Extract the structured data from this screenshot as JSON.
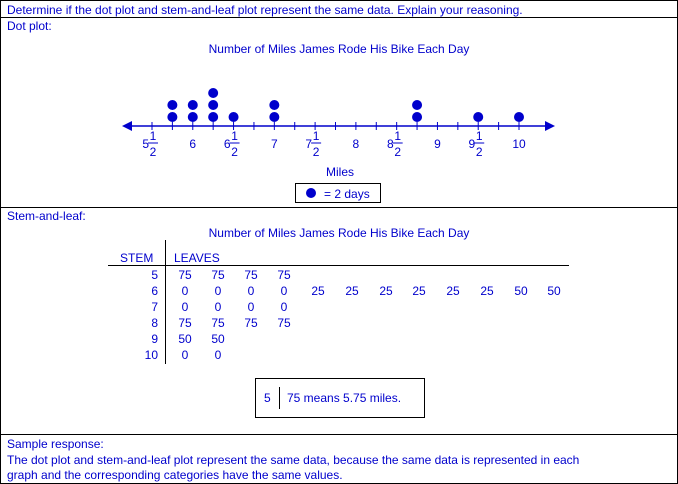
{
  "prompt": "Determine if the dot plot and stem-and-leaf plot represent the same data. Explain your reasoning.",
  "dot_plot": {
    "label": "Dot plot:",
    "title": "Number of Miles James Rode His Bike Each Day",
    "axis_label": "Miles",
    "tick_labels": [
      {
        "whole": "5",
        "num": "1",
        "den": "2",
        "value": 5.5
      },
      {
        "whole": "6",
        "value": 6
      },
      {
        "whole": "6",
        "num": "1",
        "den": "2",
        "value": 6.5
      },
      {
        "whole": "7",
        "value": 7
      },
      {
        "whole": "7",
        "num": "1",
        "den": "2",
        "value": 7.5
      },
      {
        "whole": "8",
        "value": 8
      },
      {
        "whole": "8",
        "num": "1",
        "den": "2",
        "value": 8.5
      },
      {
        "whole": "9",
        "value": 9
      },
      {
        "whole": "9",
        "num": "1",
        "den": "2",
        "value": 9.5
      },
      {
        "whole": "10",
        "value": 10
      }
    ],
    "dots": [
      {
        "value": 5.75,
        "count": 2
      },
      {
        "value": 6,
        "count": 2
      },
      {
        "value": 6.25,
        "count": 3
      },
      {
        "value": 6.5,
        "count": 1
      },
      {
        "value": 7,
        "count": 2
      },
      {
        "value": 8.75,
        "count": 2
      },
      {
        "value": 9.5,
        "count": 1
      },
      {
        "value": 10,
        "count": 1
      }
    ],
    "legend": "= 2 days"
  },
  "stem_leaf": {
    "label": "Stem-and-leaf:",
    "title": "Number of Miles James Rode His Bike Each Day",
    "stem_header": "STEM",
    "leaves_header": "LEAVES",
    "rows": [
      {
        "stem": "5",
        "leaves": [
          "75",
          "75",
          "75",
          "75"
        ]
      },
      {
        "stem": "6",
        "leaves": [
          "0",
          "0",
          "0",
          "0",
          "25",
          "25",
          "25",
          "25",
          "25",
          "25",
          "50",
          "50"
        ]
      },
      {
        "stem": "7",
        "leaves": [
          "0",
          "0",
          "0",
          "0"
        ]
      },
      {
        "stem": "8",
        "leaves": [
          "75",
          "75",
          "75",
          "75"
        ]
      },
      {
        "stem": "9",
        "leaves": [
          "50",
          "50"
        ]
      },
      {
        "stem": "10",
        "leaves": [
          "0",
          "0"
        ]
      }
    ],
    "key": {
      "stem": "5",
      "text": "75 means 5.75 miles."
    }
  },
  "sample_response": {
    "label": "Sample response:",
    "line1": "The dot plot and stem-and-leaf plot represent the same data, because the same data is represented in each",
    "line2": "graph and the corresponding categories have the same values."
  },
  "colors": {
    "text": "#0000cc",
    "border": "#000000"
  }
}
